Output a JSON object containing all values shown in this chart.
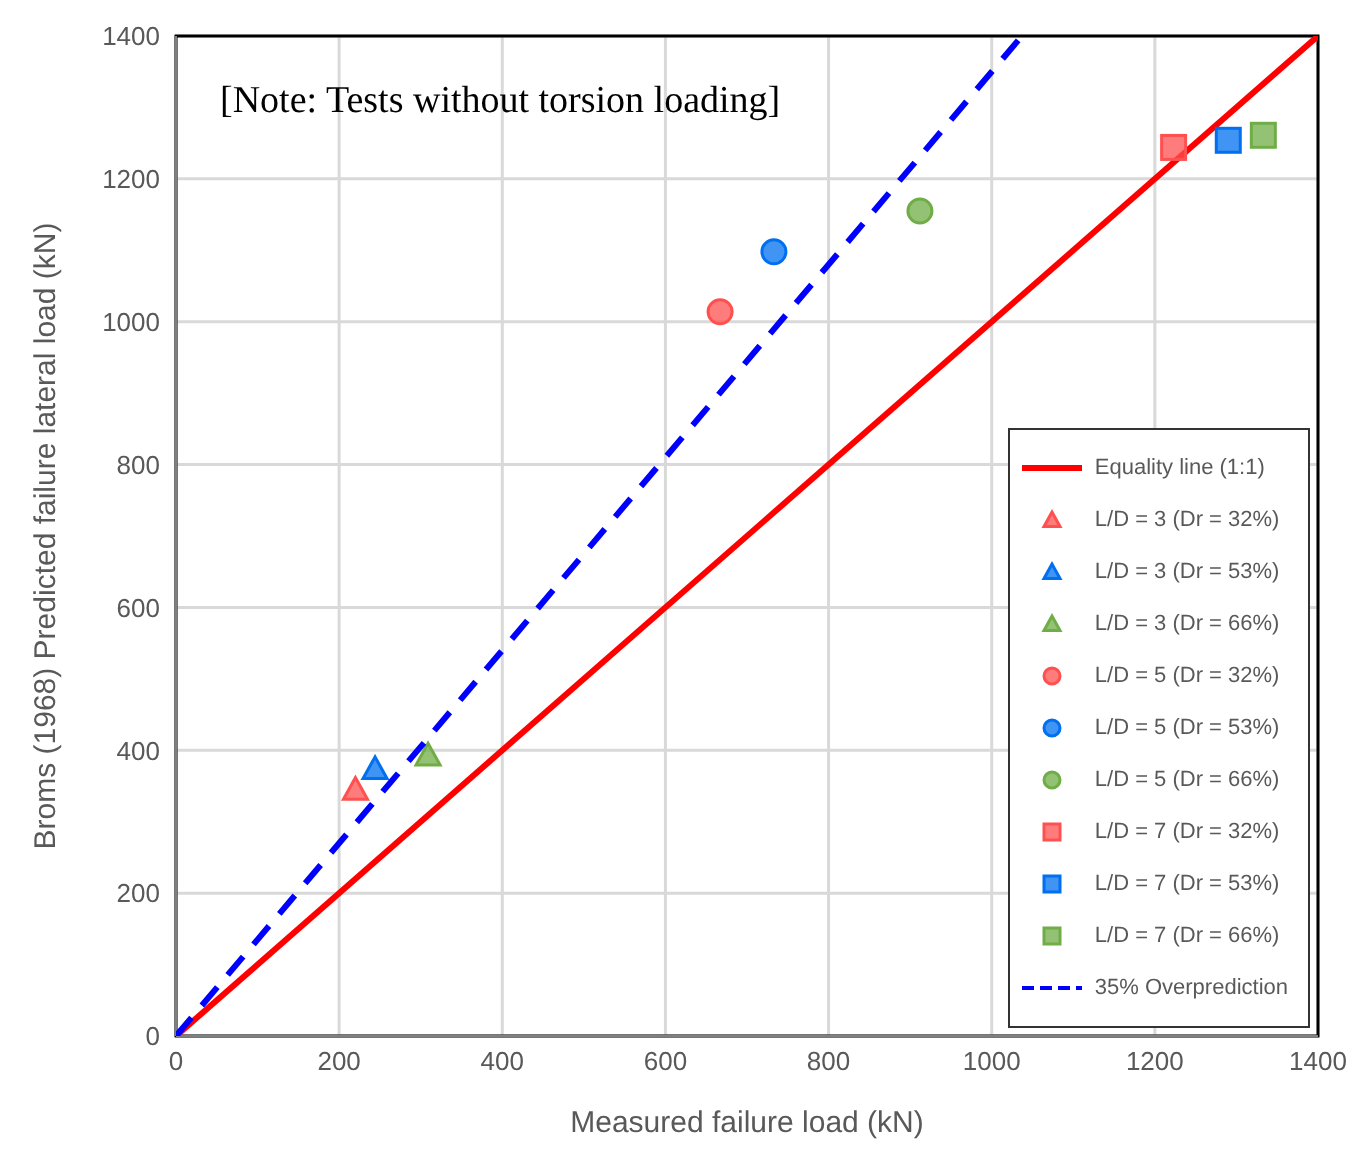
{
  "chart_data": {
    "type": "scatter",
    "xlabel": "Measured failure load (kN)",
    "ylabel": "Broms (1968) Predicted failure lateral load (kN)",
    "annotations": [
      "[Note: Tests without torsion loading]"
    ],
    "xlim": [
      0,
      1400
    ],
    "xticks": [
      0,
      200,
      400,
      600,
      800,
      1000,
      1200,
      1400
    ],
    "ylim": [
      0,
      1400
    ],
    "yticks": [
      0,
      200,
      400,
      600,
      800,
      1000,
      1200,
      1400
    ],
    "grid": true,
    "legend": "bottom right",
    "series": [
      {
        "name": "Equality line (1:1)",
        "type": "line",
        "line_style": "solid",
        "color": "#ff0000",
        "x": [
          0,
          1400
        ],
        "values": [
          0,
          1400
        ]
      },
      {
        "name": "L/D = 3 (Dr = 32%)",
        "marker": "triangle",
        "color": "#ff5050",
        "x": [
          220
        ],
        "values": [
          345
        ]
      },
      {
        "name": "L/D = 3 (Dr = 53%)",
        "marker": "triangle",
        "color": "#0070f0",
        "x": [
          244
        ],
        "values": [
          374
        ]
      },
      {
        "name": "L/D = 3 (Dr = 66%)",
        "marker": "triangle",
        "color": "#70ad47",
        "x": [
          309
        ],
        "values": [
          393
        ]
      },
      {
        "name": "L/D = 5 (Dr = 32%)",
        "marker": "circle",
        "color": "#ff5050",
        "x": [
          667
        ],
        "values": [
          1014
        ]
      },
      {
        "name": "L/D = 5 (Dr = 53%)",
        "marker": "circle",
        "color": "#0070f0",
        "x": [
          733
        ],
        "values": [
          1098
        ]
      },
      {
        "name": "L/D = 5 (Dr = 66%)",
        "marker": "circle",
        "color": "#70ad47",
        "x": [
          912
        ],
        "values": [
          1155
        ]
      },
      {
        "name": "L/D = 7 (Dr = 32%)",
        "marker": "square",
        "color": "#ff5050",
        "x": [
          1223
        ],
        "values": [
          1244
        ]
      },
      {
        "name": "L/D = 7 (Dr = 53%)",
        "marker": "square",
        "color": "#0070f0",
        "x": [
          1290
        ],
        "values": [
          1254
        ]
      },
      {
        "name": "L/D = 7 (Dr = 66%)",
        "marker": "square",
        "color": "#70ad47",
        "x": [
          1333
        ],
        "values": [
          1261
        ]
      },
      {
        "name": "35% Overprediction",
        "type": "line",
        "line_style": "dashed",
        "color": "#0000ff",
        "x": [
          0,
          1037
        ],
        "values": [
          0,
          1400
        ]
      }
    ]
  }
}
